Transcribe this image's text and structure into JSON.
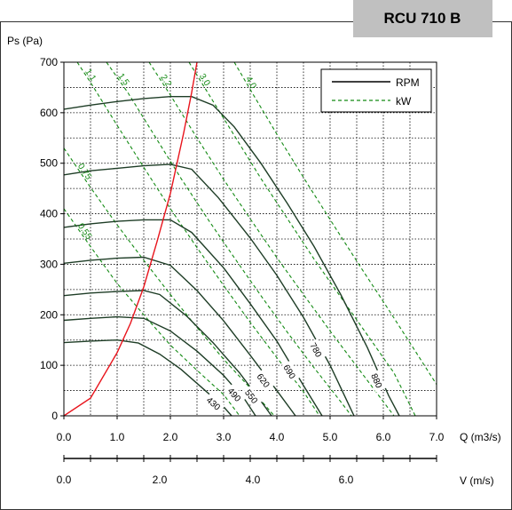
{
  "chart_data": {
    "type": "line",
    "title": "RCU 710 B",
    "ylabel": "Ps (Pa)",
    "xlabel": "Q (m3/s)",
    "x2label": "V (m/s)",
    "xlim": [
      0,
      7
    ],
    "ylim": [
      0,
      700
    ],
    "x_ticks": [
      "0.0",
      "1.0",
      "2.0",
      "3.0",
      "4.0",
      "5.0",
      "6.0",
      "7.0"
    ],
    "y_ticks": [
      "0",
      "100",
      "200",
      "300",
      "400",
      "500",
      "600",
      "700"
    ],
    "x2_ticks": [
      "0.0",
      "2.0",
      "4.0",
      "6.0"
    ],
    "x2_tick_q": [
      0,
      1.8,
      3.55,
      5.3
    ],
    "grid": true,
    "legend": {
      "position": "top-right",
      "items": [
        {
          "label": "RPM",
          "style": "solid",
          "color": "#000000"
        },
        {
          "label": "kW",
          "style": "dashed",
          "color": "#138a13"
        }
      ]
    },
    "rpm_curves": [
      {
        "label": "430",
        "points": [
          [
            0,
            145
          ],
          [
            0.5,
            148
          ],
          [
            1.0,
            150
          ],
          [
            1.4,
            144
          ],
          [
            1.8,
            122
          ],
          [
            2.2,
            92
          ],
          [
            2.6,
            55
          ],
          [
            3.0,
            18
          ],
          [
            3.15,
            0
          ]
        ]
      },
      {
        "label": "490",
        "points": [
          [
            0,
            189
          ],
          [
            0.5,
            193
          ],
          [
            1.0,
            196
          ],
          [
            1.5,
            193
          ],
          [
            2.0,
            168
          ],
          [
            2.5,
            128
          ],
          [
            3.0,
            80
          ],
          [
            3.4,
            32
          ],
          [
            3.6,
            0
          ]
        ]
      },
      {
        "label": "550",
        "points": [
          [
            0,
            238
          ],
          [
            0.5,
            243
          ],
          [
            1.0,
            246
          ],
          [
            1.5,
            248
          ],
          [
            1.8,
            240
          ],
          [
            2.3,
            198
          ],
          [
            2.8,
            145
          ],
          [
            3.3,
            85
          ],
          [
            3.75,
            22
          ],
          [
            3.9,
            0
          ]
        ]
      },
      {
        "label": "620",
        "points": [
          [
            0,
            302
          ],
          [
            0.5,
            308
          ],
          [
            1.0,
            312
          ],
          [
            1.5,
            314
          ],
          [
            2.0,
            298
          ],
          [
            2.5,
            248
          ],
          [
            3.0,
            188
          ],
          [
            3.5,
            120
          ],
          [
            4.0,
            50
          ],
          [
            4.35,
            0
          ]
        ]
      },
      {
        "label": "690",
        "points": [
          [
            0,
            373
          ],
          [
            0.5,
            380
          ],
          [
            1.0,
            385
          ],
          [
            1.5,
            388
          ],
          [
            2.0,
            388
          ],
          [
            2.4,
            363
          ],
          [
            3.0,
            293
          ],
          [
            3.5,
            222
          ],
          [
            4.0,
            148
          ],
          [
            4.5,
            60
          ],
          [
            4.85,
            0
          ]
        ]
      },
      {
        "label": "780",
        "points": [
          [
            0,
            477
          ],
          [
            0.5,
            485
          ],
          [
            1.0,
            490
          ],
          [
            1.5,
            495
          ],
          [
            2.0,
            498
          ],
          [
            2.4,
            488
          ],
          [
            2.9,
            432
          ],
          [
            3.5,
            352
          ],
          [
            4.0,
            278
          ],
          [
            4.5,
            195
          ],
          [
            5.0,
            100
          ],
          [
            5.45,
            0
          ]
        ]
      },
      {
        "label": "880",
        "points": [
          [
            0,
            607
          ],
          [
            0.5,
            615
          ],
          [
            1.0,
            622
          ],
          [
            1.5,
            628
          ],
          [
            2.0,
            632
          ],
          [
            2.4,
            632
          ],
          [
            2.8,
            615
          ],
          [
            3.2,
            572
          ],
          [
            3.7,
            500
          ],
          [
            4.2,
            420
          ],
          [
            4.7,
            335
          ],
          [
            5.2,
            240
          ],
          [
            5.7,
            135
          ],
          [
            6.1,
            40
          ],
          [
            6.3,
            0
          ]
        ]
      }
    ],
    "kw_curves": [
      {
        "label": "0.55",
        "points": [
          [
            0,
            410
          ],
          [
            0.5,
            335
          ],
          [
            1.0,
            262
          ],
          [
            1.5,
            200
          ],
          [
            2.0,
            140
          ],
          [
            2.5,
            90
          ],
          [
            3.0,
            42
          ],
          [
            3.3,
            0
          ]
        ]
      },
      {
        "label": "0.75",
        "points": [
          [
            0,
            530
          ],
          [
            0.5,
            452
          ],
          [
            1.0,
            378
          ],
          [
            1.5,
            308
          ],
          [
            2.0,
            240
          ],
          [
            2.5,
            175
          ],
          [
            3.0,
            112
          ],
          [
            3.5,
            55
          ],
          [
            3.95,
            0
          ]
        ]
      },
      {
        "label": "1.1",
        "points": [
          [
            0.25,
            700
          ],
          [
            0.5,
            660
          ],
          [
            1.0,
            575
          ],
          [
            1.5,
            492
          ],
          [
            2.0,
            410
          ],
          [
            2.5,
            333
          ],
          [
            3.0,
            258
          ],
          [
            3.5,
            185
          ],
          [
            4.0,
            115
          ],
          [
            4.5,
            48
          ],
          [
            4.8,
            0
          ]
        ]
      },
      {
        "label": "1.5",
        "points": [
          [
            0.8,
            700
          ],
          [
            1.2,
            640
          ],
          [
            1.7,
            555
          ],
          [
            2.2,
            470
          ],
          [
            2.7,
            390
          ],
          [
            3.2,
            313
          ],
          [
            3.7,
            238
          ],
          [
            4.2,
            165
          ],
          [
            4.7,
            95
          ],
          [
            5.2,
            28
          ],
          [
            5.4,
            0
          ]
        ]
      },
      {
        "label": "2.2",
        "points": [
          [
            1.6,
            700
          ],
          [
            2.0,
            635
          ],
          [
            2.5,
            550
          ],
          [
            3.0,
            468
          ],
          [
            3.5,
            390
          ],
          [
            4.0,
            313
          ],
          [
            4.5,
            240
          ],
          [
            5.0,
            168
          ],
          [
            5.5,
            98
          ],
          [
            6.0,
            28
          ],
          [
            6.2,
            0
          ]
        ]
      },
      {
        "label": "3.0",
        "points": [
          [
            2.35,
            700
          ],
          [
            2.7,
            640
          ],
          [
            3.2,
            555
          ],
          [
            3.7,
            470
          ],
          [
            4.2,
            390
          ],
          [
            4.7,
            310
          ],
          [
            5.2,
            235
          ],
          [
            5.7,
            160
          ],
          [
            6.2,
            85
          ],
          [
            6.6,
            0
          ]
        ]
      },
      {
        "label": "4.0",
        "points": [
          [
            3.2,
            700
          ],
          [
            3.6,
            628
          ],
          [
            4.1,
            540
          ],
          [
            4.6,
            455
          ],
          [
            5.1,
            372
          ],
          [
            5.6,
            290
          ],
          [
            6.1,
            210
          ],
          [
            6.6,
            128
          ],
          [
            7.0,
            62
          ]
        ]
      }
    ],
    "system_curve": {
      "points": [
        [
          0,
          0
        ],
        [
          0.5,
          35
        ],
        [
          1.0,
          125
        ],
        [
          1.25,
          183
        ],
        [
          1.5,
          255
        ],
        [
          1.75,
          345
        ],
        [
          2.0,
          440
        ],
        [
          2.25,
          560
        ],
        [
          2.4,
          640
        ],
        [
          2.5,
          700
        ]
      ]
    }
  }
}
